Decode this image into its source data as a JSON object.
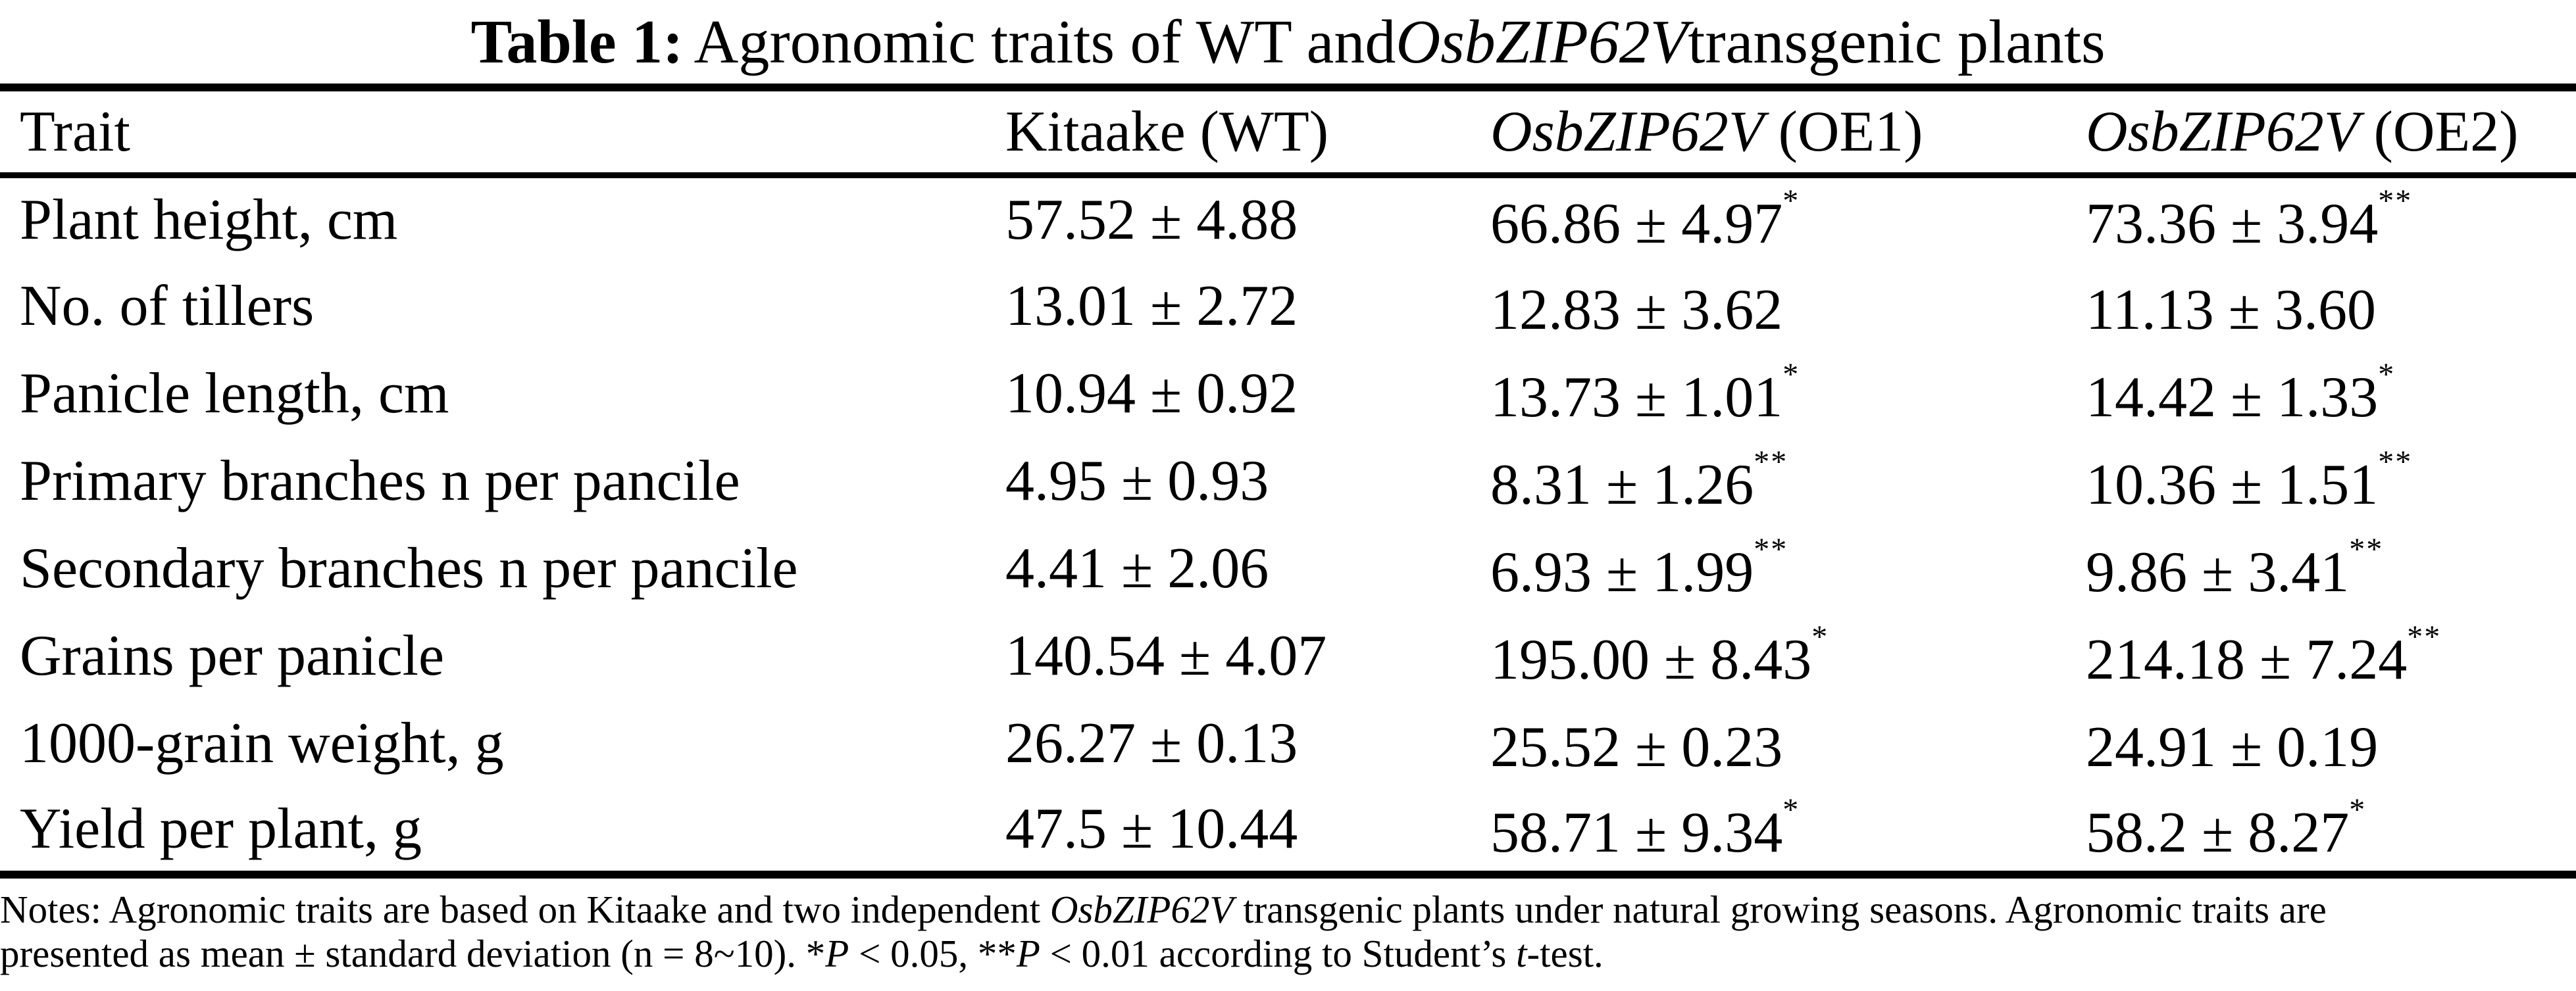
{
  "title": {
    "label": "Table 1:",
    "before_gene": "Agronomic traits of WT and ",
    "gene": "OsbZIP62V",
    "after_gene": " transgenic plants"
  },
  "table": {
    "columns": [
      {
        "italic": "",
        "rest": "Trait"
      },
      {
        "italic": "",
        "rest": "Kitaake (WT)"
      },
      {
        "italic": "OsbZIP62V",
        "rest": " (OE1)"
      },
      {
        "italic": "OsbZIP62V",
        "rest": " (OE2)"
      }
    ],
    "rows": [
      {
        "trait": "Plant height, cm",
        "wt": "57.52 ± 4.88",
        "oe1": "66.86 ± 4.97",
        "oe1_sig": "*",
        "oe2": "73.36 ± 3.94",
        "oe2_sig": "**"
      },
      {
        "trait": "No. of tillers",
        "wt": "13.01 ± 2.72",
        "oe1": "12.83 ± 3.62",
        "oe1_sig": "",
        "oe2": "11.13 ± 3.60",
        "oe2_sig": ""
      },
      {
        "trait": "Panicle length, cm",
        "wt": "10.94 ± 0.92",
        "oe1": "13.73 ± 1.01",
        "oe1_sig": "*",
        "oe2": "14.42 ± 1.33",
        "oe2_sig": "*"
      },
      {
        "trait": "Primary branches n per pancile",
        "wt": "4.95 ± 0.93",
        "oe1": "8.31 ± 1.26",
        "oe1_sig": "**",
        "oe2": "10.36 ± 1.51",
        "oe2_sig": "**"
      },
      {
        "trait": "Secondary branches n per pancile",
        "wt": "4.41 ± 2.06",
        "oe1": "6.93 ± 1.99",
        "oe1_sig": "**",
        "oe2": "9.86 ± 3.41",
        "oe2_sig": "**"
      },
      {
        "trait": "Grains per panicle",
        "wt": "140.54 ± 4.07",
        "oe1": "195.00 ± 8.43",
        "oe1_sig": "*",
        "oe2": "214.18 ± 7.24",
        "oe2_sig": "**"
      },
      {
        "trait": "1000-grain weight, g",
        "wt": "26.27 ± 0.13",
        "oe1": "25.52 ± 0.23",
        "oe1_sig": "",
        "oe2": "24.91 ± 0.19",
        "oe2_sig": ""
      },
      {
        "trait": "Yield per plant, g",
        "wt": "47.5 ± 10.44",
        "oe1": "58.71 ± 9.34",
        "oe1_sig": "*",
        "oe2": "58.2 ± 8.27",
        "oe2_sig": "*"
      }
    ]
  },
  "notes": {
    "line1_before_gene": "Notes: Agronomic traits are based on Kitaake and two independent ",
    "line1_gene": "OsbZIP62V",
    "line1_after_gene": " transgenic plants under natural growing seasons. Agronomic traits are",
    "line2_seg1": "presented as mean ± standard deviation (n = 8~10). *",
    "line2_p1": "P",
    "line2_seg2": " < 0.05, **",
    "line2_p2": "P",
    "line2_seg3": " < 0.01 according to Student’s ",
    "line2_t": "t",
    "line2_seg4": "-test."
  },
  "colors": {
    "text": "#000000",
    "background": "#ffffff",
    "rule": "#000000"
  }
}
